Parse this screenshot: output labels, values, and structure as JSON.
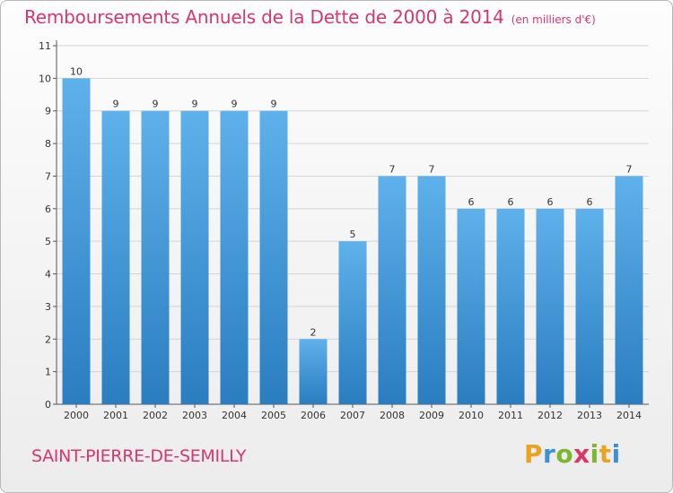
{
  "chart_data": {
    "type": "bar",
    "title": "Remboursements Annuels de la Dette de 2000 à 2014",
    "subtitle": "(en milliers d'€)",
    "categories": [
      "2000",
      "2001",
      "2002",
      "2003",
      "2004",
      "2005",
      "2006",
      "2007",
      "2008",
      "2009",
      "2010",
      "2011",
      "2012",
      "2013",
      "2014"
    ],
    "values": [
      10,
      9,
      9,
      9,
      9,
      9,
      2,
      5,
      7,
      7,
      6,
      6,
      6,
      6,
      7
    ],
    "y_ticks": [
      "0",
      "1",
      "2",
      "3",
      "4",
      "5",
      "6",
      "7",
      "8",
      "9",
      "10",
      "11"
    ],
    "ylim": [
      0,
      11
    ],
    "grid": true,
    "xlabel": "",
    "ylabel": "",
    "bar_color_top": "#5eb1ea",
    "bar_color_bottom": "#2a7dc0",
    "grid_color": "#d4d4d4"
  },
  "footer": {
    "city": "SAINT-PIERRE-DE-SEMILLY",
    "logo_letters": [
      "P",
      "r",
      "o",
      "x",
      "i",
      "t",
      "i"
    ],
    "logo_colors": [
      "#e8a321",
      "#3f8fd6",
      "#7cb82f",
      "#d9366b",
      "#7cb82f",
      "#e8a321",
      "#3f8fd6"
    ]
  },
  "colors": {
    "title": "#d9366b"
  }
}
